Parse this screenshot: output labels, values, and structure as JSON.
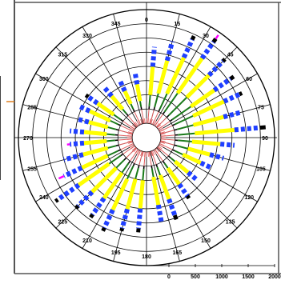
{
  "chart_data": {
    "type": "polar-stacked-bar",
    "title": "",
    "angle_unit": "degrees",
    "angle_labels": [
      "0",
      "15",
      "30",
      "45",
      "60",
      "75",
      "90",
      "105",
      "120",
      "135",
      "150",
      "165",
      "180",
      "195",
      "210",
      "225",
      "240",
      "255",
      "270",
      "285",
      "300",
      "315",
      "330",
      "345"
    ],
    "radial_axis": {
      "ticks": [
        "0",
        "500",
        "1000",
        "1500",
        "2000"
      ],
      "range": [
        0,
        2000
      ]
    },
    "grid": true,
    "segment_colors": {
      "inner": "#e06060",
      "core": "#000000",
      "green": "#1a7a1a",
      "yellow": "#ffff00",
      "blue": "#1f3fff",
      "tip": "#000000",
      "magenta": "#ff00ff"
    },
    "bars": [
      {
        "dir": 5,
        "inner": 250,
        "core": 300,
        "green": 500,
        "yellow": 1000,
        "blue": 1350
      },
      {
        "dir": 15,
        "inner": 250,
        "core": 300,
        "green": 550,
        "yellow": 1150,
        "blue": 1500
      },
      {
        "dir": 25,
        "inner": 250,
        "core": 300,
        "green": 600,
        "yellow": 1300,
        "blue": 1650,
        "tip": 1720
      },
      {
        "dir": 35,
        "inner": 250,
        "core": 300,
        "green": 700,
        "yellow": 1450,
        "blue": 1800,
        "tip": 1870,
        "magenta": 1950
      },
      {
        "dir": 45,
        "inner": 250,
        "core": 300,
        "green": 750,
        "yellow": 1300,
        "blue": 1650,
        "tip": 1700
      },
      {
        "dir": 55,
        "inner": 250,
        "core": 300,
        "green": 700,
        "yellow": 1200,
        "blue": 1550,
        "tip": 1620
      },
      {
        "dir": 65,
        "inner": 250,
        "core": 300,
        "green": 650,
        "yellow": 1250,
        "blue": 1550,
        "tip": 1600
      },
      {
        "dir": 75,
        "inner": 250,
        "core": 300,
        "green": 600,
        "yellow": 1150,
        "blue": 1450
      },
      {
        "dir": 85,
        "inner": 250,
        "core": 300,
        "green": 600,
        "yellow": 1300,
        "blue": 1750,
        "tip": 1850
      },
      {
        "dir": 95,
        "inner": 250,
        "core": 300,
        "green": 550,
        "yellow": 1050,
        "blue": 1300
      },
      {
        "dir": 105,
        "inner": 250,
        "core": 300,
        "green": 500,
        "yellow": 900,
        "blue": 1150
      },
      {
        "dir": 115,
        "inner": 250,
        "core": 300,
        "green": 450,
        "yellow": 800,
        "blue": 1000
      },
      {
        "dir": 130,
        "inner": 250,
        "core": 300,
        "green": 400,
        "yellow": 700,
        "blue": 900
      },
      {
        "dir": 145,
        "inner": 250,
        "core": 300,
        "green": 400,
        "yellow": 750,
        "blue": 1000,
        "tip": 1050
      },
      {
        "dir": 160,
        "inner": 250,
        "core": 300,
        "green": 450,
        "yellow": 900,
        "blue": 1200,
        "tip": 1280
      },
      {
        "dir": 170,
        "inner": 250,
        "core": 300,
        "green": 450,
        "yellow": 950,
        "blue": 1250
      },
      {
        "dir": 185,
        "inner": 250,
        "core": 300,
        "green": 500,
        "yellow": 1000,
        "blue": 1350,
        "tip": 1420
      },
      {
        "dir": 195,
        "inner": 250,
        "core": 300,
        "green": 500,
        "yellow": 1050,
        "blue": 1400,
        "tip": 1450
      },
      {
        "dir": 205,
        "inner": 250,
        "core": 300,
        "green": 550,
        "yellow": 1150,
        "blue": 1500,
        "tip": 1560
      },
      {
        "dir": 215,
        "inner": 250,
        "core": 300,
        "green": 500,
        "yellow": 1050,
        "blue": 1400,
        "tip": 1460
      },
      {
        "dir": 225,
        "inner": 250,
        "core": 300,
        "green": 500,
        "yellow": 1100,
        "blue": 1450,
        "tip": 1500
      },
      {
        "dir": 235,
        "inner": 250,
        "core": 300,
        "green": 550,
        "yellow": 1200,
        "blue": 1650,
        "tip": 1700
      },
      {
        "dir": 245,
        "inner": 250,
        "core": 300,
        "green": 500,
        "yellow": 1000,
        "blue": 1350,
        "magenta": 1450
      },
      {
        "dir": 255,
        "inner": 250,
        "core": 300,
        "green": 450,
        "yellow": 900,
        "blue": 1250
      },
      {
        "dir": 265,
        "inner": 250,
        "core": 300,
        "green": 450,
        "yellow": 850,
        "blue": 1100,
        "magenta": 1150
      },
      {
        "dir": 275,
        "inner": 250,
        "core": 300,
        "green": 450,
        "yellow": 850,
        "blue": 1100
      },
      {
        "dir": 285,
        "inner": 250,
        "core": 300,
        "green": 450,
        "yellow": 800,
        "blue": 1000
      },
      {
        "dir": 295,
        "inner": 250,
        "core": 300,
        "green": 450,
        "yellow": 850,
        "blue": 1050
      },
      {
        "dir": 305,
        "inner": 250,
        "core": 300,
        "green": 450,
        "yellow": 800,
        "blue": 1000,
        "tip": 1050
      },
      {
        "dir": 320,
        "inner": 250,
        "core": 300,
        "green": 400,
        "yellow": 700,
        "blue": 900
      },
      {
        "dir": 335,
        "inner": 250,
        "core": 300,
        "green": 400,
        "yellow": 650,
        "blue": 850
      },
      {
        "dir": 350,
        "inner": 250,
        "core": 300,
        "green": 400,
        "yellow": 700,
        "blue": 900
      }
    ]
  }
}
